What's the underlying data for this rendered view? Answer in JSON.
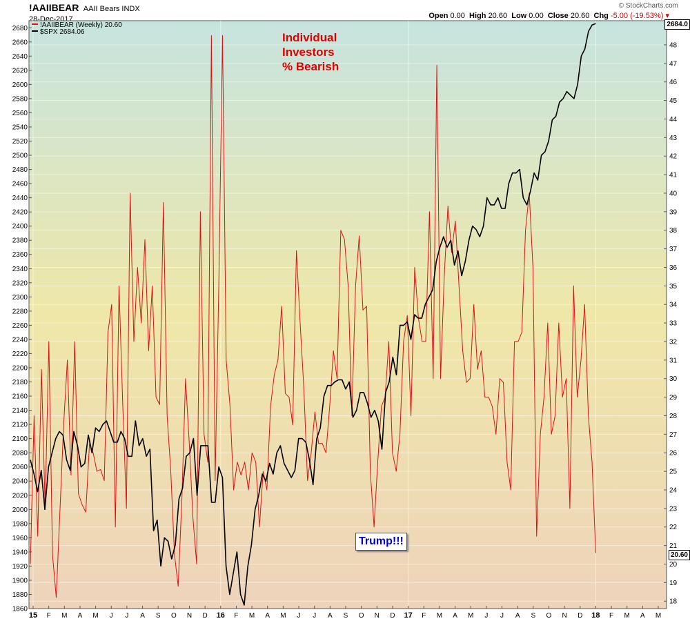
{
  "header": {
    "ticker": "!AAIIBEAR",
    "description": "AAII Bears  INDX",
    "date": "28-Dec-2017",
    "brand": "© StockCharts.com",
    "open_label": "Open",
    "open": "0.00",
    "high_label": "High",
    "high": "20.60",
    "low_label": "Low",
    "low": "0.00",
    "close_label": "Close",
    "close": "20.60",
    "chg_label": "Chg",
    "chg": "-5.00 (-19.53%)"
  },
  "legend": {
    "series1": "!AAIIBEAR (Weekly) 20.60",
    "series2": "$SPX 2684.06"
  },
  "annotation": {
    "line1": "Individual",
    "line2": "Investors",
    "line3": "% Bearish",
    "trump": "Trump!!!"
  },
  "last_labels": {
    "spx": "2684.0",
    "bear": "20.60"
  },
  "colors": {
    "bear_line": "#dd1111",
    "spx_line": "#000000",
    "bg_top": "#c6e4df",
    "bg_mid": "#efe7a8",
    "bg_bottom": "#eed3bb"
  },
  "chart_data": {
    "type": "line",
    "x_axis": {
      "labels": [
        "15",
        "F",
        "M",
        "A",
        "M",
        "J",
        "J",
        "A",
        "S",
        "O",
        "N",
        "D",
        "16",
        "F",
        "M",
        "A",
        "M",
        "J",
        "J",
        "A",
        "S",
        "O",
        "N",
        "D",
        "17",
        "F",
        "M",
        "A",
        "M",
        "J",
        "J",
        "A",
        "S",
        "O",
        "N",
        "D",
        "18",
        "F",
        "M",
        "A",
        "M"
      ],
      "years": [
        "15",
        "16",
        "17",
        "18"
      ]
    },
    "left_axis": {
      "ylim": [
        1860,
        2690
      ],
      "ticks": [
        1860,
        1880,
        1900,
        1920,
        1940,
        1960,
        1980,
        2000,
        2020,
        2040,
        2060,
        2080,
        2100,
        2120,
        2140,
        2160,
        2180,
        2200,
        2220,
        2240,
        2260,
        2280,
        2300,
        2320,
        2340,
        2360,
        2380,
        2400,
        2420,
        2440,
        2460,
        2480,
        2500,
        2520,
        2540,
        2560,
        2580,
        2600,
        2620,
        2640,
        2660,
        2680
      ]
    },
    "right_axis": {
      "ylim": [
        17.6,
        49.3
      ],
      "ticks": [
        18,
        19,
        20,
        21,
        22,
        23,
        24,
        25,
        26,
        27,
        28,
        29,
        30,
        31,
        32,
        33,
        34,
        35,
        36,
        37,
        38,
        39,
        40,
        41,
        42,
        43,
        44,
        45,
        46,
        47,
        48
      ]
    },
    "series": [
      {
        "name": "!AAIIBEAR (Weekly) 20.60",
        "axis": "right",
        "color": "#dd1111",
        "values": [
          20.0,
          28.0,
          21.5,
          30.5,
          23.0,
          32.0,
          20.5,
          18.2,
          22.8,
          27.5,
          31.0,
          24.8,
          32.0,
          23.8,
          23.2,
          22.8,
          26.5,
          26.0,
          25.0,
          25.1,
          24.5,
          32.5,
          34.0,
          22.0,
          35.0,
          28.6,
          23.0,
          40.0,
          32.0,
          36.0,
          33.0,
          37.5,
          31.5,
          35.0,
          29.0,
          28.6,
          39.5,
          28.0,
          25.0,
          20.5,
          18.8,
          23.5,
          30.0,
          26.5,
          22.5,
          20.0,
          39.0,
          27.0,
          25.5,
          48.5,
          24.5,
          35.0,
          48.5,
          31.0,
          28.6,
          24.0,
          25.5,
          24.8,
          25.5,
          24.0,
          26.0,
          25.5,
          22.0,
          25.0,
          24.0,
          28.5,
          30.2,
          31.0,
          33.9,
          29.2,
          29.0,
          27.5,
          36.9,
          33.0,
          29.5,
          24.5,
          26.0,
          28.2,
          26.5,
          26.5,
          26.0,
          28.5,
          31.5,
          30.0,
          38.0,
          37.5,
          35.0,
          28.0,
          35.0,
          37.7,
          33.7,
          33.9,
          25.0,
          22.0,
          25.5,
          28.5,
          29.0,
          32.0,
          26.0,
          25.0,
          27.0,
          32.0,
          33.4,
          28.0,
          36.0,
          33.3,
          32.0,
          32.0,
          39.0,
          30.0,
          46.9,
          30.0,
          35.5,
          39.3,
          36.8,
          38.5,
          35.0,
          31.5,
          29.8,
          30.0,
          34.0,
          30.5,
          31.5,
          29.0,
          29.0,
          28.5,
          27.0,
          30.0,
          29.8,
          25.5,
          24.0,
          32.0,
          32.0,
          32.5,
          38.0,
          40.0,
          36.0,
          21.5,
          27.0,
          29.0,
          33.0,
          27.0,
          28.0,
          33.0,
          29.0,
          30.0,
          23.0,
          35.0,
          29.0,
          31.0,
          34.0,
          28.0,
          25.5,
          20.6
        ]
      },
      {
        "name": "$SPX 2684.06",
        "axis": "left",
        "color": "#000000",
        "values": [
          2070,
          2050,
          2025,
          2055,
          2000,
          2060,
          2080,
          2100,
          2110,
          2105,
          2070,
          2055,
          2110,
          2090,
          2060,
          2065,
          2105,
          2080,
          2115,
          2110,
          2120,
          2125,
          2110,
          2095,
          2095,
          2110,
          2100,
          2075,
          2075,
          2125,
          2090,
          2100,
          2075,
          2085,
          1970,
          1985,
          1920,
          1960,
          1955,
          1930,
          1950,
          2015,
          2030,
          2075,
          2080,
          2100,
          2020,
          2090,
          2090,
          2090,
          2010,
          2010,
          2060,
          2045,
          1920,
          1880,
          1910,
          1940,
          1880,
          1865,
          1920,
          1950,
          2000,
          2020,
          2050,
          2040,
          2065,
          2050,
          2080,
          2090,
          2065,
          2055,
          2045,
          2055,
          2100,
          2100,
          2095,
          2070,
          2035,
          2100,
          2115,
          2160,
          2175,
          2175,
          2180,
          2183,
          2183,
          2170,
          2180,
          2130,
          2140,
          2165,
          2165,
          2150,
          2130,
          2140,
          2125,
          2085,
          2165,
          2180,
          2215,
          2190,
          2260,
          2260,
          2265,
          2240,
          2275,
          2270,
          2270,
          2290,
          2300,
          2310,
          2350,
          2370,
          2385,
          2370,
          2380,
          2345,
          2365,
          2330,
          2350,
          2380,
          2400,
          2395,
          2385,
          2400,
          2440,
          2430,
          2430,
          2440,
          2425,
          2425,
          2460,
          2475,
          2475,
          2480,
          2440,
          2430,
          2450,
          2475,
          2465,
          2500,
          2505,
          2520,
          2550,
          2555,
          2575,
          2580,
          2590,
          2585,
          2580,
          2600,
          2640,
          2650,
          2675,
          2684,
          2686
        ]
      }
    ]
  }
}
